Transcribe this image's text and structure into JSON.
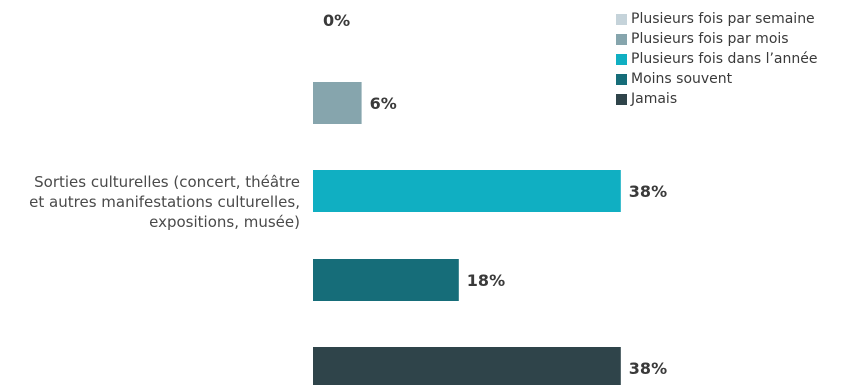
{
  "chart_data": {
    "type": "bar",
    "orientation": "horizontal",
    "category": "Sorties culturelles (concert, théâtre et autres manifestations culturelles, expositions, musée)",
    "category_lines": [
      "Sorties culturelles (concert, théâtre",
      "et autres manifestations culturelles,",
      "expositions, musée)"
    ],
    "series": [
      {
        "name": "Plusieurs fois par semaine",
        "value": 0,
        "label": "0%",
        "color": "#c5d3da"
      },
      {
        "name": "Plusieurs fois par mois",
        "value": 6,
        "label": "6%",
        "color": "#86a5ad"
      },
      {
        "name": "Plusieurs fois dans l’année",
        "value": 38,
        "label": "38%",
        "color": "#10afc2"
      },
      {
        "name": "Moins souvent",
        "value": 18,
        "label": "18%",
        "color": "#166d79"
      },
      {
        "name": "Jamais",
        "value": 38,
        "label": "38%",
        "color": "#2f444a"
      }
    ],
    "legend_position": "top-right",
    "grid": false,
    "unit": "%"
  }
}
